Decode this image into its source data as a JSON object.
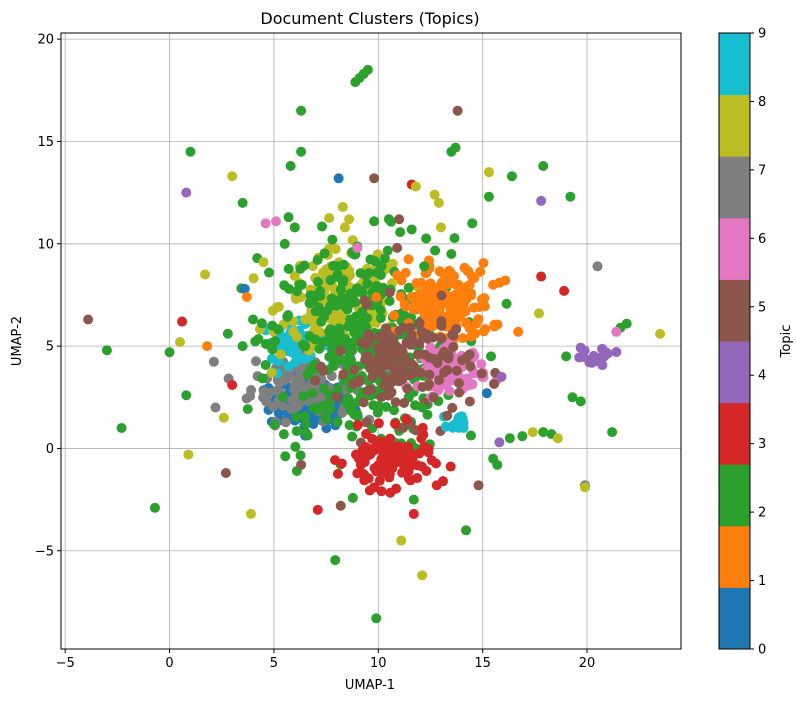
{
  "chart_data": {
    "type": "scatter",
    "title": "Document Clusters (Topics)",
    "xlabel": "UMAP-1",
    "ylabel": "UMAP-2",
    "xlim": [
      -5.2,
      24.5
    ],
    "ylim": [
      -9.8,
      20.3
    ],
    "xticks": [
      -5,
      0,
      5,
      10,
      15,
      20
    ],
    "yticks": [
      -5,
      0,
      5,
      10,
      15,
      20
    ],
    "xtick_labels": [
      "−5",
      "0",
      "5",
      "10",
      "15",
      "20"
    ],
    "ytick_labels": [
      "−5",
      "0",
      "5",
      "10",
      "15",
      "20"
    ],
    "grid": true,
    "colorbar": {
      "label": "Topic",
      "min": 0,
      "max": 9,
      "ticks": [
        "0",
        "1",
        "2",
        "3",
        "4",
        "5",
        "6",
        "7",
        "8",
        "9"
      ],
      "colors": [
        "#1f77b4",
        "#ff7f0e",
        "#2ca02c",
        "#d62728",
        "#9467bd",
        "#8c564b",
        "#e377c2",
        "#7f7f7f",
        "#bcbd22",
        "#17becf"
      ]
    },
    "clusters": [
      {
        "topic": 0,
        "center": [
          6.8,
          2.2
        ],
        "spread": [
          1.0,
          0.6
        ],
        "count": 150
      },
      {
        "topic": 7,
        "center": [
          6.3,
          3.2
        ],
        "spread": [
          1.2,
          0.9
        ],
        "count": 110
      },
      {
        "topic": 9,
        "center": [
          6.0,
          5.2
        ],
        "spread": [
          0.8,
          0.45
        ],
        "count": 60
      },
      {
        "topic": 8,
        "center": [
          8.3,
          7.0
        ],
        "spread": [
          1.5,
          1.3
        ],
        "count": 170
      },
      {
        "topic": 2,
        "center": [
          9.2,
          5.0
        ],
        "spread": [
          2.2,
          2.6
        ],
        "count": 380
      },
      {
        "topic": 1,
        "center": [
          13.2,
          7.0
        ],
        "spread": [
          1.1,
          1.0
        ],
        "count": 170
      },
      {
        "topic": 6,
        "center": [
          13.6,
          3.9
        ],
        "spread": [
          0.8,
          0.5
        ],
        "count": 90
      },
      {
        "topic": 5,
        "center": [
          11.2,
          4.1
        ],
        "spread": [
          1.6,
          1.3
        ],
        "count": 150
      },
      {
        "topic": 3,
        "center": [
          10.5,
          -0.6
        ],
        "spread": [
          1.0,
          0.7
        ],
        "count": 110
      },
      {
        "topic": 4,
        "center": [
          20.3,
          4.5
        ],
        "spread": [
          0.5,
          0.25
        ],
        "count": 18
      },
      {
        "topic": 9,
        "center": [
          13.9,
          1.3
        ],
        "spread": [
          0.25,
          0.2
        ],
        "count": 14
      }
    ],
    "points": [
      {
        "x": 9.5,
        "y": 18.5,
        "t": 2
      },
      {
        "x": 9.3,
        "y": 18.3,
        "t": 2
      },
      {
        "x": 9.1,
        "y": 18.1,
        "t": 2
      },
      {
        "x": 8.9,
        "y": 17.9,
        "t": 2
      },
      {
        "x": 6.3,
        "y": 16.5,
        "t": 2
      },
      {
        "x": 13.8,
        "y": 16.5,
        "t": 5
      },
      {
        "x": 13.7,
        "y": 14.7,
        "t": 2
      },
      {
        "x": 13.5,
        "y": 14.5,
        "t": 2
      },
      {
        "x": 6.3,
        "y": 14.5,
        "t": 2
      },
      {
        "x": 1.0,
        "y": 14.5,
        "t": 2
      },
      {
        "x": 3.0,
        "y": 13.3,
        "t": 8
      },
      {
        "x": 5.8,
        "y": 13.8,
        "t": 2
      },
      {
        "x": 8.1,
        "y": 13.2,
        "t": 0
      },
      {
        "x": 9.8,
        "y": 13.2,
        "t": 5
      },
      {
        "x": 11.6,
        "y": 12.9,
        "t": 3
      },
      {
        "x": 15.3,
        "y": 13.5,
        "t": 8
      },
      {
        "x": 16.4,
        "y": 13.3,
        "t": 2
      },
      {
        "x": 17.9,
        "y": 13.8,
        "t": 2
      },
      {
        "x": 0.8,
        "y": 12.5,
        "t": 4
      },
      {
        "x": 3.5,
        "y": 12.0,
        "t": 2
      },
      {
        "x": 15.3,
        "y": 12.3,
        "t": 2
      },
      {
        "x": 17.8,
        "y": 12.1,
        "t": 4
      },
      {
        "x": 19.2,
        "y": 12.3,
        "t": 2
      },
      {
        "x": 4.6,
        "y": 11.0,
        "t": 6
      },
      {
        "x": 5.1,
        "y": 11.1,
        "t": 6
      },
      {
        "x": 5.7,
        "y": 11.3,
        "t": 2
      },
      {
        "x": 6.0,
        "y": 10.8,
        "t": 2
      },
      {
        "x": 14.5,
        "y": 11.0,
        "t": 2
      },
      {
        "x": 11.0,
        "y": 11.2,
        "t": 5
      },
      {
        "x": 9.8,
        "y": 11.1,
        "t": 2
      },
      {
        "x": 1.7,
        "y": 8.5,
        "t": 8
      },
      {
        "x": -3.9,
        "y": 6.3,
        "t": 5
      },
      {
        "x": 0.6,
        "y": 6.2,
        "t": 3
      },
      {
        "x": 0.5,
        "y": 5.2,
        "t": 8
      },
      {
        "x": -3.0,
        "y": 4.8,
        "t": 2
      },
      {
        "x": 0.0,
        "y": 4.7,
        "t": 2
      },
      {
        "x": 1.8,
        "y": 5.0,
        "t": 1
      },
      {
        "x": 3.5,
        "y": 5.0,
        "t": 2
      },
      {
        "x": 3.6,
        "y": 7.8,
        "t": 0
      },
      {
        "x": 3.7,
        "y": 7.4,
        "t": 1
      },
      {
        "x": 4.2,
        "y": 9.3,
        "t": 2
      },
      {
        "x": 4.5,
        "y": 9.1,
        "t": 8
      },
      {
        "x": 3.0,
        "y": 3.1,
        "t": 3
      },
      {
        "x": 0.8,
        "y": 2.6,
        "t": 2
      },
      {
        "x": 2.2,
        "y": 2.0,
        "t": 7
      },
      {
        "x": 2.6,
        "y": 1.5,
        "t": 8
      },
      {
        "x": -2.3,
        "y": 1.0,
        "t": 2
      },
      {
        "x": 0.9,
        "y": -0.3,
        "t": 8
      },
      {
        "x": 2.7,
        "y": -1.2,
        "t": 5
      },
      {
        "x": -0.7,
        "y": -2.9,
        "t": 2
      },
      {
        "x": 3.9,
        "y": -3.2,
        "t": 8
      },
      {
        "x": 6.1,
        "y": -1.1,
        "t": 2
      },
      {
        "x": 6.3,
        "y": -0.8,
        "t": 5
      },
      {
        "x": 7.1,
        "y": -3.0,
        "t": 3
      },
      {
        "x": 8.2,
        "y": -2.8,
        "t": 5
      },
      {
        "x": 11.1,
        "y": -4.5,
        "t": 8
      },
      {
        "x": 12.1,
        "y": -6.2,
        "t": 8
      },
      {
        "x": 9.9,
        "y": -8.3,
        "t": 2
      },
      {
        "x": 11.7,
        "y": -2.5,
        "t": 2
      },
      {
        "x": 11.7,
        "y": -3.2,
        "t": 3
      },
      {
        "x": 14.8,
        "y": -1.8,
        "t": 5
      },
      {
        "x": 14.2,
        "y": -4.0,
        "t": 2
      },
      {
        "x": 15.5,
        "y": -0.5,
        "t": 2
      },
      {
        "x": 15.7,
        "y": -0.8,
        "t": 2
      },
      {
        "x": 15.8,
        "y": 0.3,
        "t": 4
      },
      {
        "x": 16.3,
        "y": 0.5,
        "t": 2
      },
      {
        "x": 16.9,
        "y": 0.6,
        "t": 2
      },
      {
        "x": 17.4,
        "y": 0.8,
        "t": 8
      },
      {
        "x": 17.9,
        "y": 0.8,
        "t": 2
      },
      {
        "x": 18.3,
        "y": 0.7,
        "t": 2
      },
      {
        "x": 18.6,
        "y": 0.5,
        "t": 8
      },
      {
        "x": 19.9,
        "y": -1.8,
        "t": 7
      },
      {
        "x": 19.9,
        "y": -1.9,
        "t": 8
      },
      {
        "x": 21.2,
        "y": 0.8,
        "t": 2
      },
      {
        "x": 19.3,
        "y": 2.5,
        "t": 2
      },
      {
        "x": 19.7,
        "y": 2.3,
        "t": 2
      },
      {
        "x": 19.0,
        "y": 4.5,
        "t": 2
      },
      {
        "x": 17.7,
        "y": 6.6,
        "t": 8
      },
      {
        "x": 17.8,
        "y": 8.4,
        "t": 3
      },
      {
        "x": 18.9,
        "y": 7.7,
        "t": 3
      },
      {
        "x": 20.5,
        "y": 8.9,
        "t": 7
      },
      {
        "x": 21.6,
        "y": 5.9,
        "t": 2
      },
      {
        "x": 21.4,
        "y": 5.7,
        "t": 6
      },
      {
        "x": 21.9,
        "y": 6.1,
        "t": 2
      },
      {
        "x": 23.5,
        "y": 5.6,
        "t": 8
      },
      {
        "x": 16.7,
        "y": 5.7,
        "t": 1
      },
      {
        "x": 15.5,
        "y": 8.0,
        "t": 1
      },
      {
        "x": 15.8,
        "y": 8.1,
        "t": 1
      },
      {
        "x": 15.4,
        "y": 4.5,
        "t": 2
      },
      {
        "x": 15.9,
        "y": 3.5,
        "t": 4
      },
      {
        "x": 15.2,
        "y": 2.7,
        "t": 0
      },
      {
        "x": 13.5,
        "y": 9.5,
        "t": 2
      },
      {
        "x": 13.0,
        "y": 10.8,
        "t": 8
      },
      {
        "x": 12.9,
        "y": 12.0,
        "t": 8
      },
      {
        "x": 12.7,
        "y": 12.4,
        "t": 8
      },
      {
        "x": 11.8,
        "y": 12.8,
        "t": 8
      },
      {
        "x": 12.2,
        "y": 8.9,
        "t": 2
      },
      {
        "x": 9.0,
        "y": 9.8,
        "t": 6
      },
      {
        "x": 7.8,
        "y": 10.2,
        "t": 2
      },
      {
        "x": 10.9,
        "y": 9.8,
        "t": 5
      },
      {
        "x": 11.6,
        "y": 10.7,
        "t": 2
      },
      {
        "x": 4.0,
        "y": 6.3,
        "t": 2
      },
      {
        "x": 8.3,
        "y": 11.8,
        "t": 8
      },
      {
        "x": 8.6,
        "y": 11.2,
        "t": 8
      },
      {
        "x": 8.4,
        "y": 10.8,
        "t": 8
      },
      {
        "x": 12.8,
        "y": -1.8,
        "t": 3
      },
      {
        "x": 13.1,
        "y": -1.6,
        "t": 3
      },
      {
        "x": 9.8,
        "y": -1.9,
        "t": 3
      },
      {
        "x": 12.1,
        "y": 2.0,
        "t": 2
      },
      {
        "x": 13.3,
        "y": 1.6,
        "t": 5
      }
    ]
  }
}
